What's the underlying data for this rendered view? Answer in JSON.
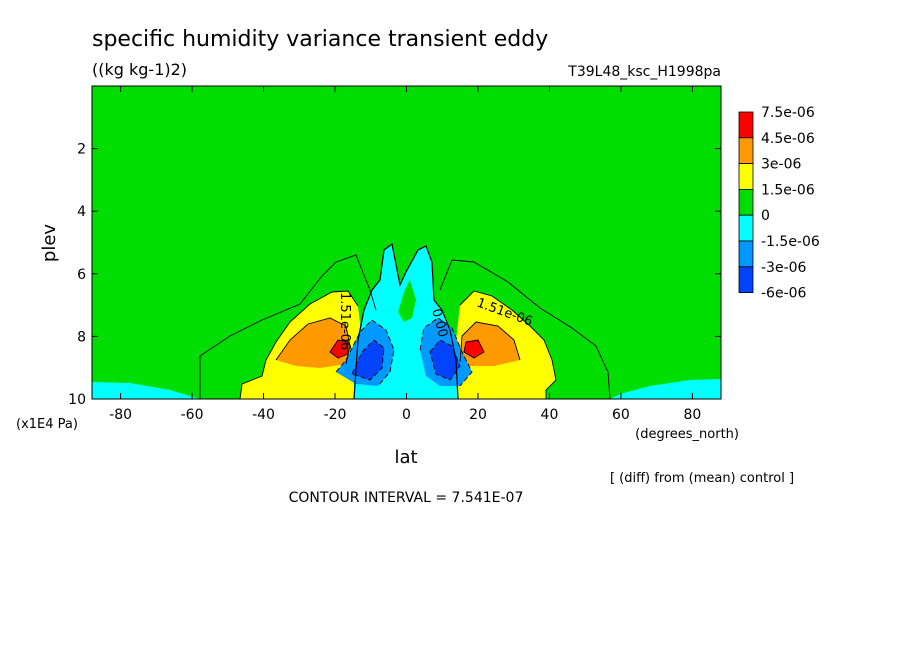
{
  "header": {
    "title": "specific humidity variance transient eddy",
    "units": "((kg kg-1)2)",
    "run_id": "T39L48_ksc_H1998pa"
  },
  "footer": {
    "contour_interval": "CONTOUR INTERVAL = 7.541E-07",
    "diff_note": "[ (diff) from (mean) control ]"
  },
  "contour_labels": [
    "1.51e-06",
    "1.51e-06",
    "0.00"
  ],
  "colors": {
    "red": "#ff0000",
    "orange": "#ff9900",
    "yellow": "#ffff00",
    "green": "#00dd00",
    "cyan": "#00ffff",
    "mid_blue": "#0099ff",
    "blue": "#0044ff"
  },
  "chart_data": {
    "type": "heatmap",
    "xlabel": "lat",
    "ylabel": "plev",
    "x_unit": "(degrees_north)",
    "y_unit": "(x1E4 Pa)",
    "xlim": [
      -88,
      88
    ],
    "ylim": [
      10,
      0
    ],
    "x_ticks": [
      -80,
      -60,
      -40,
      -20,
      0,
      20,
      40,
      60,
      80
    ],
    "y_ticks": [
      2,
      4,
      6,
      8,
      10
    ],
    "legend": {
      "placement": "right",
      "levels": [
        "7.5e-06",
        "4.5e-06",
        "3e-06",
        "1.5e-06",
        "0",
        "-1.5e-06",
        "-3e-06",
        "-6e-06"
      ],
      "colors": [
        "#ff0000",
        "#ff9900",
        "#ffff00",
        "#00dd00",
        "#00ffff",
        "#0099ff",
        "#0044ff"
      ]
    },
    "features": [
      {
        "kind": "maximum",
        "lat": -18,
        "plev": 8.4,
        "value_band": "4.5e-06 to 7.5e-06"
      },
      {
        "kind": "maximum",
        "lat": 18,
        "plev": 8.4,
        "value_band": "4.5e-06 to 7.5e-06"
      },
      {
        "kind": "minimum",
        "lat": -10,
        "plev": 8.6,
        "value_band": "-6e-06 to -3e-06"
      },
      {
        "kind": "minimum",
        "lat": 10,
        "plev": 8.6,
        "value_band": "-6e-06 to -3e-06"
      }
    ]
  }
}
